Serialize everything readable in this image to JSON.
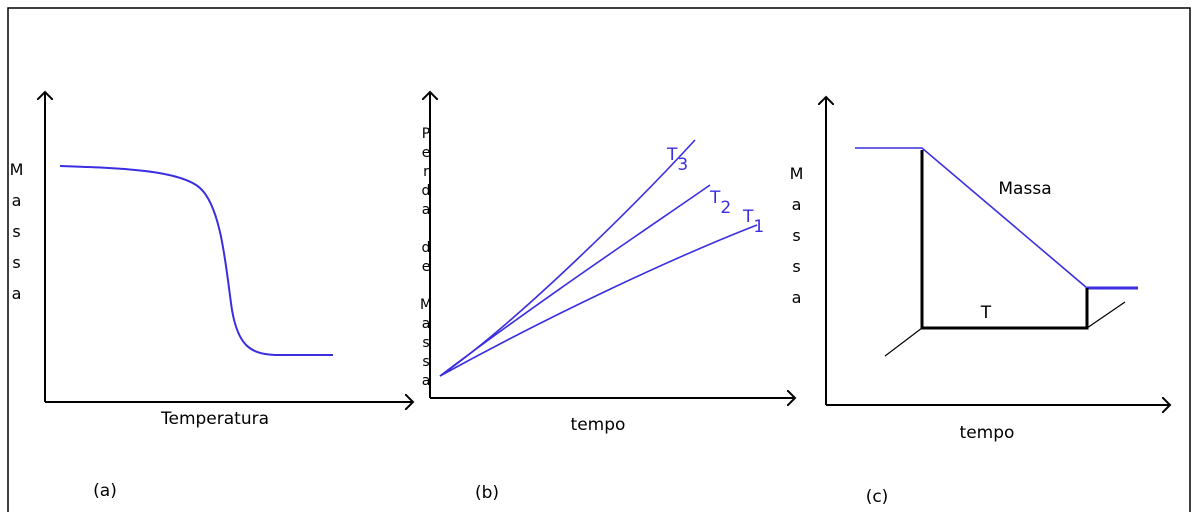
{
  "panels": [
    {
      "y_label": "Massa",
      "x_label": "Temperatura",
      "caption": "(a)"
    },
    {
      "y_label": "Perda de Massa",
      "x_label": "tempo",
      "caption": "(b)",
      "curve_labels": [
        {
          "symbol": "T",
          "subscript": "3"
        },
        {
          "symbol": "T",
          "subscript": "2"
        },
        {
          "symbol": "T",
          "subscript": "1"
        }
      ]
    },
    {
      "y_label": "Massa",
      "x_label": "tempo",
      "caption": "(c)",
      "curve_label": "Massa",
      "interval_label": "T"
    }
  ]
}
